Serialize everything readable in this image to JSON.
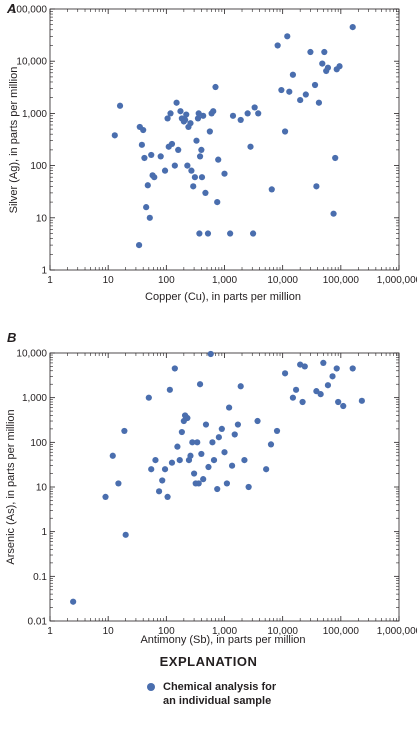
{
  "chart_data": [
    {
      "type": "scatter",
      "panel_label": "A",
      "xlabel": "Copper (Cu), in parts per million",
      "ylabel": "Silver (Ag), in parts per million",
      "xscale": "log",
      "yscale": "log",
      "xlim": [
        1,
        1000000
      ],
      "ylim": [
        1,
        100000
      ],
      "x_ticks": [
        "1",
        "10",
        "100",
        "1,000",
        "10,000",
        "100,000",
        "1,000,000"
      ],
      "y_ticks": [
        "1",
        "10",
        "100",
        "1,000",
        "10,000",
        "100,000"
      ],
      "grid": false,
      "point_color": "#4a6eae",
      "series": [
        {
          "points": [
            [
              13,
              380
            ],
            [
              16,
              1400
            ],
            [
              34,
              3
            ],
            [
              35,
              550
            ],
            [
              38,
              250
            ],
            [
              40,
              480
            ],
            [
              42,
              140
            ],
            [
              45,
              16
            ],
            [
              48,
              42
            ],
            [
              52,
              10
            ],
            [
              55,
              160
            ],
            [
              58,
              65
            ],
            [
              62,
              60
            ],
            [
              80,
              150
            ],
            [
              95,
              80
            ],
            [
              105,
              800
            ],
            [
              110,
              230
            ],
            [
              118,
              1000
            ],
            [
              125,
              260
            ],
            [
              140,
              100
            ],
            [
              150,
              1600
            ],
            [
              160,
              200
            ],
            [
              175,
              1100
            ],
            [
              185,
              800
            ],
            [
              200,
              700
            ],
            [
              210,
              750
            ],
            [
              220,
              950
            ],
            [
              230,
              100
            ],
            [
              240,
              550
            ],
            [
              260,
              650
            ],
            [
              270,
              80
            ],
            [
              290,
              40
            ],
            [
              310,
              60
            ],
            [
              330,
              300
            ],
            [
              350,
              800
            ],
            [
              360,
              1000
            ],
            [
              370,
              5
            ],
            [
              380,
              150
            ],
            [
              400,
              200
            ],
            [
              410,
              60
            ],
            [
              430,
              900
            ],
            [
              470,
              30
            ],
            [
              520,
              5
            ],
            [
              560,
              450
            ],
            [
              600,
              1000
            ],
            [
              640,
              1100
            ],
            [
              700,
              3200
            ],
            [
              750,
              20
            ],
            [
              780,
              130
            ],
            [
              1000,
              70
            ],
            [
              1250,
              5
            ],
            [
              1400,
              900
            ],
            [
              1900,
              750
            ],
            [
              2500,
              1000
            ],
            [
              2800,
              230
            ],
            [
              3100,
              5
            ],
            [
              3300,
              1300
            ],
            [
              3800,
              1000
            ],
            [
              6500,
              35
            ],
            [
              8200,
              20000
            ],
            [
              9500,
              2800
            ],
            [
              11000,
              450
            ],
            [
              12000,
              30000
            ],
            [
              13000,
              2600
            ],
            [
              15000,
              5500
            ],
            [
              20000,
              1800
            ],
            [
              25000,
              2300
            ],
            [
              30000,
              15000
            ],
            [
              36000,
              3500
            ],
            [
              38000,
              40
            ],
            [
              42000,
              1600
            ],
            [
              48000,
              9000
            ],
            [
              52000,
              15000
            ],
            [
              56000,
              6500
            ],
            [
              60000,
              7500
            ],
            [
              75000,
              12
            ],
            [
              80000,
              140
            ],
            [
              85000,
              7000
            ],
            [
              95000,
              8000
            ],
            [
              160000,
              45000
            ]
          ]
        }
      ]
    },
    {
      "type": "scatter",
      "panel_label": "B",
      "xlabel": "Antimony (Sb), in parts per million",
      "ylabel": "Arsenic (As), in parts per million",
      "xscale": "log",
      "yscale": "log",
      "xlim": [
        1,
        1000000
      ],
      "ylim": [
        0.01,
        10000
      ],
      "x_ticks": [
        "1",
        "10",
        "100",
        "1,000",
        "10,000",
        "100,000",
        "1,000,000"
      ],
      "y_ticks": [
        "0.01",
        "0.1",
        "1",
        "10",
        "100",
        "1,000",
        "10,000"
      ],
      "grid": false,
      "point_color": "#4a6eae",
      "series": [
        {
          "points": [
            [
              2.5,
              0.027
            ],
            [
              9,
              6
            ],
            [
              12,
              50
            ],
            [
              15,
              12
            ],
            [
              19,
              180
            ],
            [
              20,
              0.85
            ],
            [
              50,
              1000
            ],
            [
              55,
              25
            ],
            [
              65,
              40
            ],
            [
              75,
              8
            ],
            [
              85,
              14
            ],
            [
              95,
              25
            ],
            [
              105,
              6
            ],
            [
              115,
              1500
            ],
            [
              125,
              35
            ],
            [
              140,
              4500
            ],
            [
              155,
              80
            ],
            [
              170,
              40
            ],
            [
              185,
              170
            ],
            [
              200,
              300
            ],
            [
              210,
              400
            ],
            [
              230,
              350
            ],
            [
              245,
              40
            ],
            [
              260,
              50
            ],
            [
              280,
              100
            ],
            [
              300,
              20
            ],
            [
              320,
              12
            ],
            [
              340,
              100
            ],
            [
              360,
              12
            ],
            [
              380,
              2000
            ],
            [
              400,
              55
            ],
            [
              430,
              15
            ],
            [
              480,
              250
            ],
            [
              530,
              28
            ],
            [
              580,
              9500
            ],
            [
              620,
              100
            ],
            [
              660,
              40
            ],
            [
              750,
              9
            ],
            [
              800,
              130
            ],
            [
              900,
              200
            ],
            [
              1000,
              60
            ],
            [
              1100,
              12
            ],
            [
              1200,
              600
            ],
            [
              1350,
              30
            ],
            [
              1500,
              150
            ],
            [
              1700,
              250
            ],
            [
              1900,
              1800
            ],
            [
              2200,
              40
            ],
            [
              2600,
              10
            ],
            [
              3700,
              300
            ],
            [
              5200,
              25
            ],
            [
              6300,
              90
            ],
            [
              8000,
              180
            ],
            [
              11000,
              3500
            ],
            [
              15000,
              1000
            ],
            [
              17000,
              1500
            ],
            [
              20000,
              5500
            ],
            [
              22000,
              800
            ],
            [
              24000,
              5000
            ],
            [
              38000,
              1400
            ],
            [
              45000,
              1200
            ],
            [
              50000,
              6000
            ],
            [
              60000,
              1900
            ],
            [
              72000,
              3000
            ],
            [
              85000,
              4500
            ],
            [
              90000,
              800
            ],
            [
              110000,
              650
            ],
            [
              160000,
              4500
            ],
            [
              230000,
              850
            ]
          ]
        }
      ]
    }
  ],
  "legend": {
    "title": "EXPLANATION",
    "entry": "Chemical analysis for\nan individual sample"
  }
}
